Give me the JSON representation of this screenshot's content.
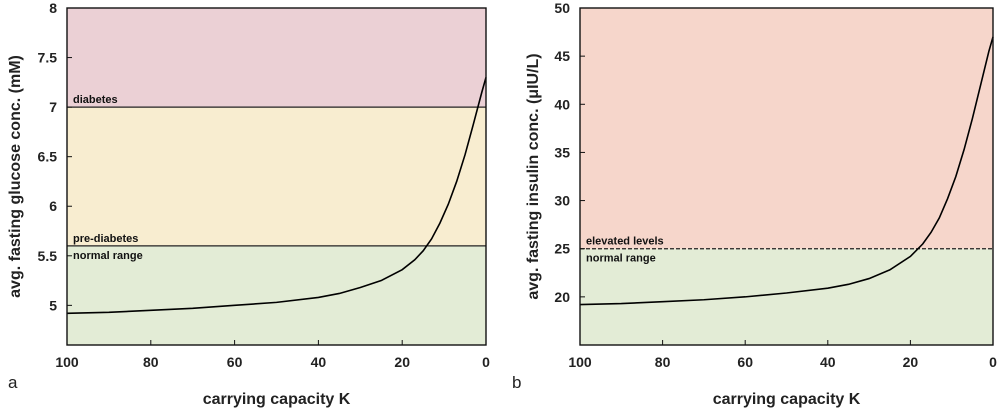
{
  "chart_data": [
    {
      "panel": "a",
      "type": "line",
      "title": "",
      "xlabel": "carrying capacity K",
      "ylabel": "avg. fasting glucose conc. (mM)",
      "xlim": [
        100,
        0
      ],
      "x_reversed": true,
      "ylim": [
        4.6,
        8
      ],
      "xticks": [
        100,
        80,
        60,
        40,
        20,
        0
      ],
      "yticks": [
        5,
        5.5,
        6,
        6.5,
        7,
        7.5,
        8
      ],
      "grid": false,
      "bands": [
        {
          "from": 4.6,
          "to": 5.6,
          "color": "#e3ecd6"
        },
        {
          "from": 5.6,
          "to": 7.0,
          "color": "#f8edd0"
        },
        {
          "from": 7.0,
          "to": 8.0,
          "color": "#ebd0d5"
        }
      ],
      "thresholds": [
        {
          "y": 7.0,
          "style": "solid",
          "label_above": "diabetes",
          "label_below": ""
        },
        {
          "y": 5.6,
          "style": "solid",
          "label_above": "pre-diabetes",
          "label_below": "normal range"
        }
      ],
      "series": [
        {
          "color": "#000000",
          "x": [
            100,
            90,
            80,
            70,
            60,
            50,
            40,
            35,
            30,
            25,
            20,
            17,
            15,
            13,
            11,
            9,
            7,
            5,
            3,
            1,
            0
          ],
          "y": [
            4.92,
            4.93,
            4.95,
            4.97,
            5.0,
            5.03,
            5.08,
            5.12,
            5.18,
            5.25,
            5.36,
            5.46,
            5.55,
            5.67,
            5.83,
            6.02,
            6.25,
            6.52,
            6.83,
            7.15,
            7.3
          ]
        }
      ],
      "panel_letter": "a"
    },
    {
      "panel": "b",
      "type": "line",
      "title": "",
      "xlabel": "carrying capacity K",
      "ylabel": "avg. fasting insulin conc. (μIU/L)",
      "xlim": [
        100,
        0
      ],
      "x_reversed": true,
      "ylim": [
        15,
        50
      ],
      "xticks": [
        100,
        80,
        60,
        40,
        20,
        0
      ],
      "yticks": [
        20,
        25,
        30,
        35,
        40,
        45,
        50
      ],
      "grid": false,
      "bands": [
        {
          "from": 15,
          "to": 25,
          "color": "#e3ecd6"
        },
        {
          "from": 25,
          "to": 50,
          "color": "#f6d6cb"
        }
      ],
      "thresholds": [
        {
          "y": 25,
          "style": "dashed",
          "label_above": "elevated levels",
          "label_below": "normal range"
        }
      ],
      "series": [
        {
          "color": "#000000",
          "x": [
            100,
            90,
            80,
            70,
            60,
            50,
            40,
            35,
            30,
            25,
            20,
            17,
            15,
            13,
            11,
            9,
            7,
            5,
            3,
            1,
            0
          ],
          "y": [
            19.2,
            19.3,
            19.5,
            19.7,
            20.0,
            20.4,
            20.9,
            21.3,
            21.9,
            22.8,
            24.2,
            25.5,
            26.7,
            28.2,
            30.2,
            32.5,
            35.3,
            38.5,
            42.0,
            45.5,
            47.0
          ]
        }
      ],
      "panel_letter": "b"
    }
  ]
}
